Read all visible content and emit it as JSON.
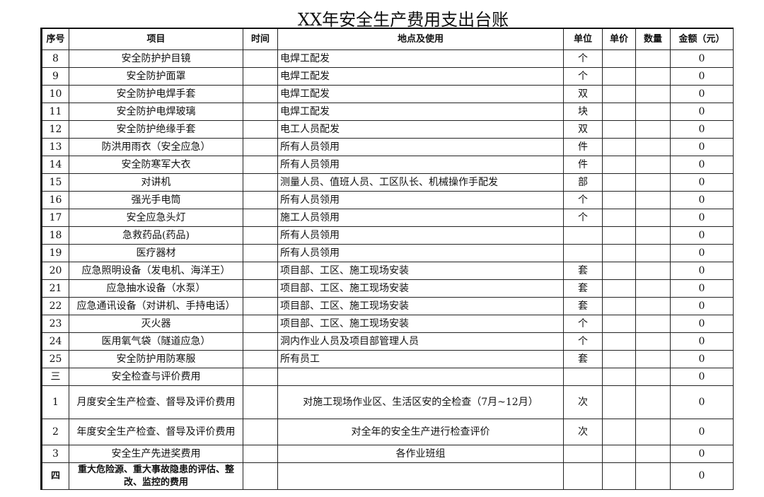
{
  "title": "XX年安全生产费用支出台账",
  "headers": [
    "序号",
    "项目",
    "时间",
    "地点及使用",
    "单位",
    "单价",
    "数量",
    "金额（元）"
  ],
  "rows": [
    {
      "no": "8",
      "item": "安全防护护目镜",
      "time": "",
      "use": "电焊工配发",
      "unit": "个",
      "price": "",
      "qty": "",
      "amount": "0"
    },
    {
      "no": "9",
      "item": "安全防护面罩",
      "time": "",
      "use": "电焊工配发",
      "unit": "个",
      "price": "",
      "qty": "",
      "amount": "0"
    },
    {
      "no": "10",
      "item": "安全防护电焊手套",
      "time": "",
      "use": "电焊工配发",
      "unit": "双",
      "price": "",
      "qty": "",
      "amount": "0"
    },
    {
      "no": "11",
      "item": "安全防护电焊玻璃",
      "time": "",
      "use": "电焊工配发",
      "unit": "块",
      "price": "",
      "qty": "",
      "amount": "0"
    },
    {
      "no": "12",
      "item": "安全防护绝缘手套",
      "time": "",
      "use": "电工人员配发",
      "unit": "双",
      "price": "",
      "qty": "",
      "amount": "0"
    },
    {
      "no": "13",
      "item": "防洪用雨衣（安全应急）",
      "time": "",
      "use": "所有人员领用",
      "unit": "件",
      "price": "",
      "qty": "",
      "amount": "0"
    },
    {
      "no": "14",
      "item": "安全防寒军大衣",
      "time": "",
      "use": "所有人员领用",
      "unit": "件",
      "price": "",
      "qty": "",
      "amount": "0"
    },
    {
      "no": "15",
      "item": "对讲机",
      "time": "",
      "use": "测量人员、值班人员、工区队长、机械操作手配发",
      "unit": "部",
      "price": "",
      "qty": "",
      "amount": "0"
    },
    {
      "no": "16",
      "item": "强光手电筒",
      "time": "",
      "use": "所有人员领用",
      "unit": "个",
      "price": "",
      "qty": "",
      "amount": "0"
    },
    {
      "no": "17",
      "item": "安全应急头灯",
      "time": "",
      "use": "施工人员领用",
      "unit": "个",
      "price": "",
      "qty": "",
      "amount": "0"
    },
    {
      "no": "18",
      "item": "急救药品(药品)",
      "time": "",
      "use": "所有人员领用",
      "unit": "",
      "price": "",
      "qty": "",
      "amount": "0"
    },
    {
      "no": "19",
      "item": "医疗器材",
      "time": "",
      "use": "所有人员领用",
      "unit": "",
      "price": "",
      "qty": "",
      "amount": "0"
    },
    {
      "no": "20",
      "item": "应急照明设备（发电机、海洋王）",
      "time": "",
      "use": "项目部、工区、施工现场安装",
      "unit": "套",
      "price": "",
      "qty": "",
      "amount": "0"
    },
    {
      "no": "21",
      "item": "应急抽水设备（水泵）",
      "time": "",
      "use": "项目部、工区、施工现场安装",
      "unit": "套",
      "price": "",
      "qty": "",
      "amount": "0"
    },
    {
      "no": "22",
      "item": "应急通讯设备（对讲机、手持电话）",
      "time": "",
      "use": "项目部、工区、施工现场安装",
      "unit": "套",
      "price": "",
      "qty": "",
      "amount": "0"
    },
    {
      "no": "23",
      "item": "灭火器",
      "time": "",
      "use": "项目部、工区、施工现场安装",
      "unit": "个",
      "price": "",
      "qty": "",
      "amount": "0"
    },
    {
      "no": "24",
      "item": "医用氧气袋（隧道应急）",
      "time": "",
      "use": "洞内作业人员及项目部管理人员",
      "unit": "个",
      "price": "",
      "qty": "",
      "amount": "0"
    },
    {
      "no": "25",
      "item": "安全防护用防寒服",
      "time": "",
      "use": "所有员工",
      "unit": "套",
      "price": "",
      "qty": "",
      "amount": "0"
    },
    {
      "no": "三",
      "item": "安全检查与评价费用",
      "time": "",
      "use": "",
      "unit": "",
      "price": "",
      "qty": "",
      "amount": "0"
    },
    {
      "no": "1",
      "item": "月度安全生产检查、督导及评价费用",
      "time": "",
      "use": "对施工现场作业区、生活区安的全检查（7月~12月）",
      "unit": "次",
      "price": "",
      "qty": "",
      "amount": "0"
    },
    {
      "no": "2",
      "item": "年度安全生产检查、督导及评价费用",
      "time": "",
      "use": "对全年的安全生产进行检查评价",
      "unit": "次",
      "price": "",
      "qty": "",
      "amount": "0"
    },
    {
      "no": "3",
      "item": "安全生产先进奖费用",
      "time": "",
      "use": "各作业班组",
      "unit": "",
      "price": "",
      "qty": "",
      "amount": "0"
    },
    {
      "no": "四",
      "item": "重大危险源、重大事故隐患的评估、整改、监控的费用",
      "time": "",
      "use": "",
      "unit": "",
      "price": "",
      "qty": "",
      "amount": "0"
    }
  ]
}
